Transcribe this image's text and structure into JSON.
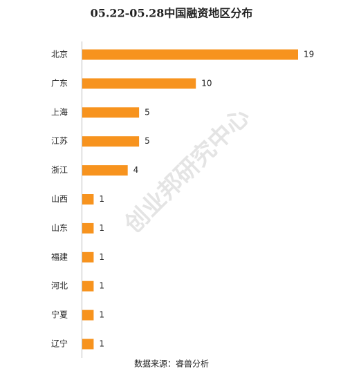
{
  "chart_data": {
    "type": "bar",
    "orientation": "horizontal",
    "title": "05.22-05.28中国融资地区分布",
    "categories": [
      "北京",
      "广东",
      "上海",
      "江苏",
      "浙江",
      "山西",
      "山东",
      "福建",
      "河北",
      "宁夏",
      "辽宁"
    ],
    "values": [
      19,
      10,
      5,
      5,
      4,
      1,
      1,
      1,
      1,
      1,
      1
    ],
    "color": "#f7931e",
    "source": "数据来源：睿兽分析",
    "watermark": "创业邦研究中心"
  }
}
